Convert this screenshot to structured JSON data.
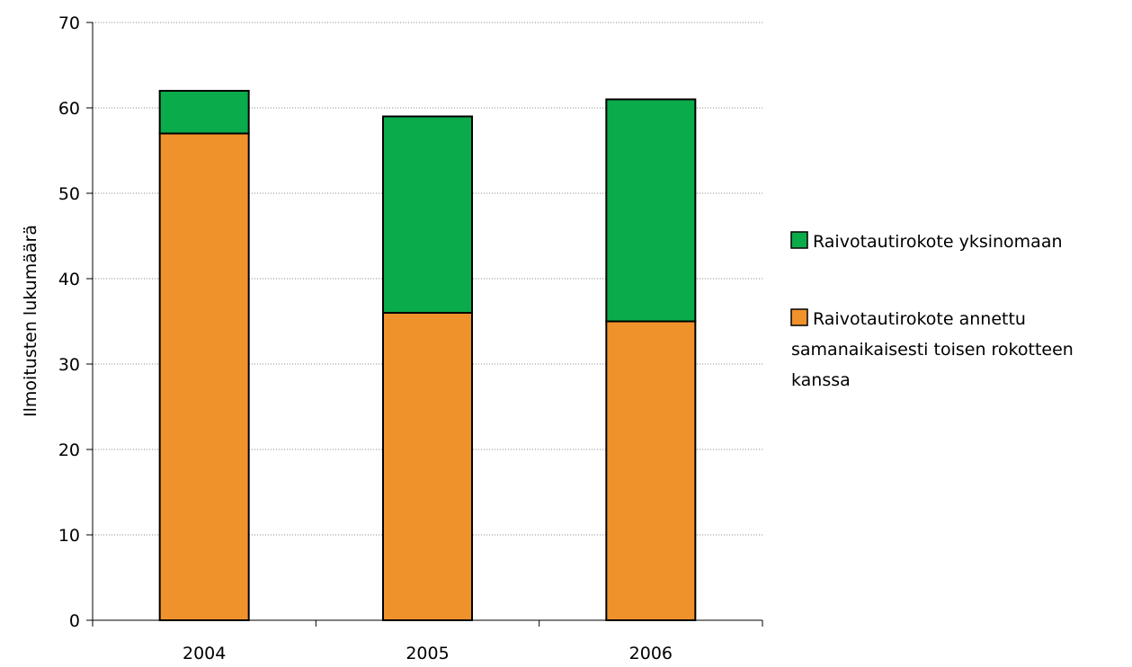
{
  "chart_data": {
    "type": "bar",
    "stacked": true,
    "categories": [
      "2004",
      "2005",
      "2006"
    ],
    "series": [
      {
        "name": "Raivotautirokote annettu samanaikaisesti toisen rokotteen kanssa",
        "legend_lines": [
          "Raivotautirokote annettu",
          "samanaikaisesti toisen rokotteen",
          "kanssa"
        ],
        "values": [
          57,
          36,
          35
        ],
        "color": "#f0922b"
      },
      {
        "name": "Raivotautirokote yksinomaan",
        "legend_lines": [
          "Raivotautirokote yksinomaan"
        ],
        "values": [
          5,
          23,
          26
        ],
        "color": "#0aab4a"
      }
    ],
    "title": "",
    "xlabel": "",
    "ylabel": "Ilmoitusten lukumäärä",
    "ylim": [
      0,
      70
    ],
    "yticks": [
      "0",
      "10",
      "20",
      "30",
      "40",
      "50",
      "60",
      "70"
    ],
    "grid": true,
    "legend_position": "right"
  }
}
